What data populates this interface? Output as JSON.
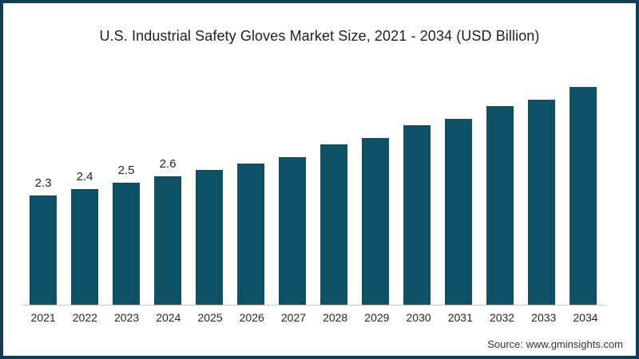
{
  "page": {
    "background": "#ffffff",
    "frame_border_color": "#113c58"
  },
  "header": {
    "title": "U.S. Industrial Safety Gloves Market Size, 2021 - 2034 (USD Billion)"
  },
  "footer": {
    "source_label": "Source: www.gminsights.com"
  },
  "chart_data": {
    "type": "bar",
    "title": "U.S. Industrial Safety Gloves Market Size, 2021 - 2034 (USD Billion)",
    "unit": "USD Billion",
    "categories": [
      "2021",
      "2022",
      "2023",
      "2024",
      "2025",
      "2026",
      "2027",
      "2028",
      "2029",
      "2030",
      "2031",
      "2032",
      "2033",
      "2034"
    ],
    "values": [
      2.3,
      2.4,
      2.5,
      2.6,
      2.7,
      2.8,
      2.9,
      3.1,
      3.2,
      3.4,
      3.5,
      3.7,
      3.8,
      4.0
    ],
    "data_labels": [
      "2.3",
      "2.4",
      "2.5",
      "2.6",
      null,
      null,
      null,
      null,
      null,
      null,
      null,
      null,
      null,
      null
    ],
    "xlabel": "",
    "ylabel": "",
    "ylim": [
      0.59,
      4.44
    ],
    "value_axis_visible": false,
    "grid": false,
    "legend": false,
    "bar_color": "#0e5166",
    "axis_line_color": "#cccccc"
  }
}
